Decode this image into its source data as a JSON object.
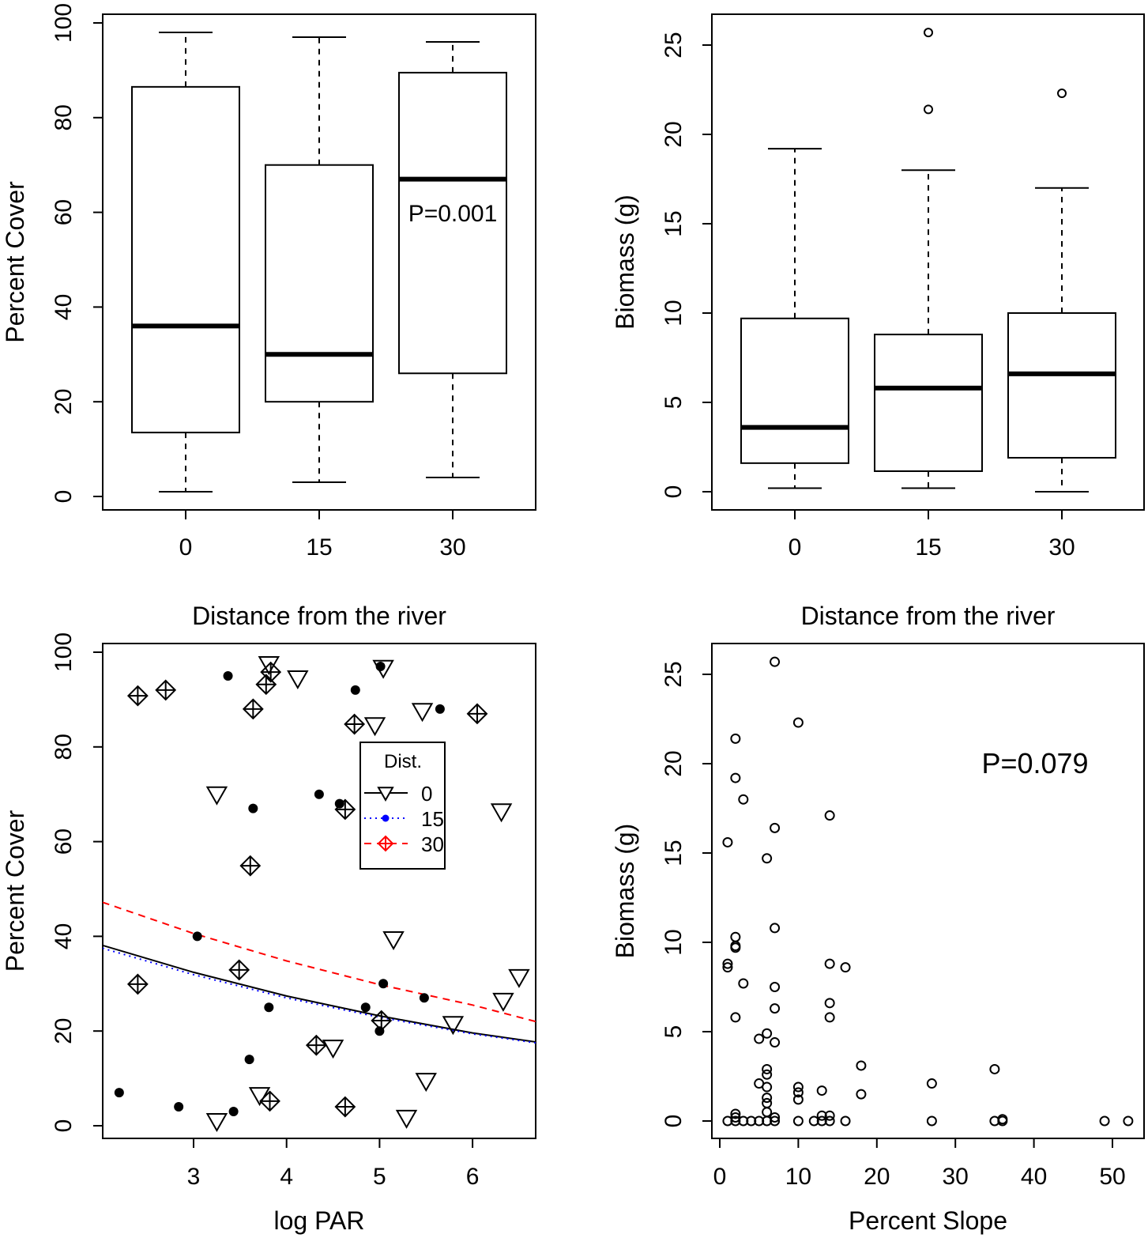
{
  "chart_data": [
    {
      "type": "box",
      "xlabel": "Distance from the river",
      "ylabel": "Percent Cover",
      "categories": [
        "0",
        "15",
        "30"
      ],
      "ylim": [
        0,
        100
      ],
      "yticks": [
        "0",
        "20",
        "40",
        "60",
        "80",
        "100"
      ],
      "annotation": "P=0.001",
      "boxes": [
        {
          "whisker_low": 1,
          "q1": 13.5,
          "median": 36,
          "q3": 86.5,
          "whisker_high": 98,
          "outliers": []
        },
        {
          "whisker_low": 3,
          "q1": 20,
          "median": 30,
          "q3": 70,
          "whisker_high": 97,
          "outliers": []
        },
        {
          "whisker_low": 4,
          "q1": 26,
          "median": 67,
          "q3": 89.5,
          "whisker_high": 96,
          "outliers": []
        }
      ]
    },
    {
      "type": "box",
      "xlabel": "Distance from the river",
      "ylabel": "Biomass (g)",
      "categories": [
        "0",
        "15",
        "30"
      ],
      "ylim": [
        0,
        25
      ],
      "yticks": [
        "0",
        "5",
        "10",
        "15",
        "20",
        "25"
      ],
      "boxes": [
        {
          "whisker_low": 0.2,
          "q1": 1.6,
          "median": 3.6,
          "q3": 9.7,
          "whisker_high": 19.2,
          "outliers": []
        },
        {
          "whisker_low": 0.2,
          "q1": 1.15,
          "median": 5.8,
          "q3": 8.8,
          "whisker_high": 18.0,
          "outliers": [
            25.7,
            21.4
          ]
        },
        {
          "whisker_low": 0,
          "q1": 1.9,
          "median": 6.6,
          "q3": 10.0,
          "whisker_high": 17.0,
          "outliers": [
            22.3
          ]
        }
      ]
    },
    {
      "type": "scatter",
      "xlabel": "log PAR",
      "ylabel": "Percent Cover",
      "xticks": [
        "3",
        "4",
        "5",
        "6"
      ],
      "yticks": [
        "0",
        "20",
        "40",
        "60",
        "80",
        "100"
      ],
      "xlim": [
        2.02,
        6.68
      ],
      "ylim": [
        0,
        100
      ],
      "legend": {
        "title": "Dist.",
        "position": "center-right"
      },
      "series": [
        {
          "name": "0",
          "marker": "triangle-down",
          "line": "solid",
          "line_color": "#000000",
          "marker_legend_color": "#000000",
          "points": [
            [
              3.25,
              70
            ],
            [
              3.25,
              1
            ],
            [
              3.81,
              97.5
            ],
            [
              4.12,
              94.5
            ],
            [
              3.71,
              6.5
            ],
            [
              4.5,
              16.5
            ],
            [
              4.95,
              84.6
            ],
            [
              5.04,
              96.7
            ],
            [
              5.15,
              39.4
            ],
            [
              5.29,
              1.7
            ],
            [
              5.46,
              87.6
            ],
            [
              5.5,
              9.5
            ],
            [
              5.79,
              21.5
            ],
            [
              6.31,
              66.4
            ],
            [
              6.33,
              26.4
            ],
            [
              6.5,
              31.4
            ]
          ],
          "fit": [
            [
              2.02,
              38.1
            ],
            [
              3,
              32.4
            ],
            [
              4,
              27.4
            ],
            [
              5,
              23.2
            ],
            [
              6,
              19.6
            ],
            [
              6.68,
              17.7
            ]
          ]
        },
        {
          "name": "15",
          "marker": "filled-circle",
          "line": "dotted",
          "line_color": "#0000ff",
          "marker_legend_color": "#0000ff",
          "points": [
            [
              2.2,
              7
            ],
            [
              2.84,
              4
            ],
            [
              3.37,
              95
            ],
            [
              3.04,
              40
            ],
            [
              3.43,
              3
            ],
            [
              3.6,
              14
            ],
            [
              3.64,
              67
            ],
            [
              3.81,
              25
            ],
            [
              4.35,
              70
            ],
            [
              4.57,
              68
            ],
            [
              4.74,
              92
            ],
            [
              4.85,
              25
            ],
            [
              5.01,
              97
            ],
            [
              5.04,
              30
            ],
            [
              5.0,
              20
            ],
            [
              5.48,
              27
            ],
            [
              5.65,
              88
            ]
          ],
          "fit": [
            [
              2.02,
              37.5
            ],
            [
              3,
              31.9
            ],
            [
              4,
              27.0
            ],
            [
              5,
              22.9
            ],
            [
              6,
              19.4
            ],
            [
              6.68,
              17.5
            ]
          ]
        },
        {
          "name": "30",
          "marker": "diamond-plus",
          "line": "dashed",
          "line_color": "#ff0000",
          "marker_legend_color": "#ff0000",
          "points": [
            [
              2.4,
              90.8
            ],
            [
              2.7,
              92
            ],
            [
              2.4,
              29.9
            ],
            [
              3.49,
              32.9
            ],
            [
              3.61,
              54.9
            ],
            [
              3.64,
              88
            ],
            [
              3.78,
              93.2
            ],
            [
              3.83,
              95.8
            ],
            [
              3.82,
              5.2
            ],
            [
              4.32,
              17
            ],
            [
              4.63,
              66.8
            ],
            [
              4.63,
              4
            ],
            [
              4.73,
              84.8
            ],
            [
              5.02,
              22.2
            ],
            [
              6.05,
              87
            ]
          ],
          "fit": [
            [
              2.02,
              47.2
            ],
            [
              3,
              40.6
            ],
            [
              4,
              34.8
            ],
            [
              5,
              29.8
            ],
            [
              6,
              25.5
            ],
            [
              6.68,
              22.0
            ]
          ]
        }
      ]
    },
    {
      "type": "scatter",
      "xlabel": "Percent Slope",
      "ylabel": "Biomass (g)",
      "xticks": [
        "0",
        "10",
        "20",
        "30",
        "40",
        "50"
      ],
      "yticks": [
        "0",
        "5",
        "10",
        "15",
        "20",
        "25"
      ],
      "annotation": "P=0.079",
      "points": [
        [
          7,
          25.7
        ],
        [
          10,
          22.3
        ],
        [
          2,
          21.4
        ],
        [
          2,
          19.2
        ],
        [
          3,
          18.0
        ],
        [
          1,
          15.6
        ],
        [
          7,
          16.4
        ],
        [
          6,
          14.7
        ],
        [
          14,
          17.1
        ],
        [
          7,
          10.8
        ],
        [
          2,
          10.3
        ],
        [
          2,
          9.8
        ],
        [
          2,
          9.7
        ],
        [
          1,
          8.8
        ],
        [
          1,
          8.6
        ],
        [
          3,
          7.7
        ],
        [
          7,
          7.5
        ],
        [
          7,
          6.3
        ],
        [
          2,
          5.8
        ],
        [
          14,
          8.8
        ],
        [
          16,
          8.6
        ],
        [
          14,
          6.6
        ],
        [
          14,
          5.8
        ],
        [
          6,
          4.9
        ],
        [
          5,
          4.6
        ],
        [
          7,
          4.4
        ],
        [
          6,
          2.9
        ],
        [
          6,
          2.6
        ],
        [
          6,
          1.9
        ],
        [
          5,
          2.1
        ],
        [
          6,
          1.3
        ],
        [
          6,
          1.0
        ],
        [
          6,
          0.5
        ],
        [
          10,
          1.9
        ],
        [
          10,
          1.6
        ],
        [
          10,
          1.2
        ],
        [
          13,
          1.7
        ],
        [
          18,
          3.1
        ],
        [
          18,
          1.5
        ],
        [
          27,
          2.1
        ],
        [
          35,
          2.9
        ],
        [
          2,
          0.4
        ],
        [
          2,
          0.2
        ],
        [
          7,
          0.2
        ],
        [
          13,
          0.3
        ],
        [
          14,
          0.3
        ],
        [
          36,
          0.1
        ],
        [
          1,
          0
        ],
        [
          2,
          0
        ],
        [
          3,
          0
        ],
        [
          4,
          0
        ],
        [
          5,
          0
        ],
        [
          6,
          0
        ],
        [
          7,
          0
        ],
        [
          10,
          0
        ],
        [
          12,
          0
        ],
        [
          13,
          0
        ],
        [
          14,
          0
        ],
        [
          16,
          0
        ],
        [
          27,
          0
        ],
        [
          35,
          0
        ],
        [
          36,
          0
        ],
        [
          49,
          0
        ],
        [
          52,
          0
        ]
      ]
    }
  ]
}
